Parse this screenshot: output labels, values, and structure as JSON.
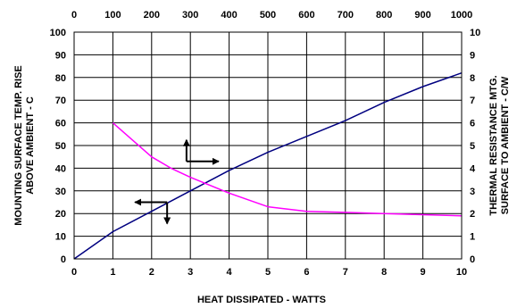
{
  "chart_data": {
    "type": "line",
    "title": "",
    "xlabel": "HEAT DISSIPATED - WATTS",
    "x_top_label": "",
    "ylabel_left": [
      "MOUNTING SURFACE TEMP. RISE",
      "ABOVE AMBIENT - C"
    ],
    "ylabel_right": [
      "THERMAL RESISTANCE MTG.",
      "SURFACE TO AMBIENT - C/W"
    ],
    "x_bottom_ticks": [
      "0",
      "1",
      "2",
      "3",
      "4",
      "5",
      "6",
      "7",
      "8",
      "9",
      "10"
    ],
    "x_top_ticks": [
      "0",
      "100",
      "200",
      "300",
      "400",
      "500",
      "600",
      "700",
      "800",
      "900",
      "1000"
    ],
    "y_left_ticks": [
      "0",
      "10",
      "20",
      "30",
      "40",
      "50",
      "60",
      "70",
      "80",
      "90",
      "100"
    ],
    "y_right_ticks": [
      "0",
      "1",
      "2",
      "3",
      "4",
      "5",
      "6",
      "7",
      "8",
      "9",
      "10"
    ],
    "xlim": [
      0,
      10
    ],
    "ylim_left": [
      0,
      100
    ],
    "ylim_right": [
      0,
      10
    ],
    "grid": true,
    "series": [
      {
        "axis": "left",
        "color": "#000080",
        "x": [
          0,
          1,
          2,
          3,
          4,
          5,
          6,
          7,
          8,
          9,
          10
        ],
        "y": [
          0,
          12,
          21,
          30,
          39,
          47,
          54,
          61,
          69,
          76,
          82
        ]
      },
      {
        "axis": "right",
        "color": "#ff00ff",
        "x": [
          1,
          2,
          2.5,
          3,
          4,
          5,
          6,
          7,
          8,
          9,
          10
        ],
        "y": [
          6.0,
          4.5,
          4.0,
          3.6,
          2.9,
          2.3,
          2.1,
          2.05,
          2.0,
          1.95,
          1.9
        ]
      }
    ],
    "annotations": [
      {
        "type": "arrow",
        "direction": "up",
        "x": 2.9,
        "y": 43
      },
      {
        "type": "arrow",
        "direction": "right",
        "x": 2.9,
        "y": 43
      },
      {
        "type": "arrow",
        "direction": "left",
        "x": 2.4,
        "y": 25
      },
      {
        "type": "arrow",
        "direction": "down",
        "x": 2.4,
        "y": 25
      }
    ]
  }
}
